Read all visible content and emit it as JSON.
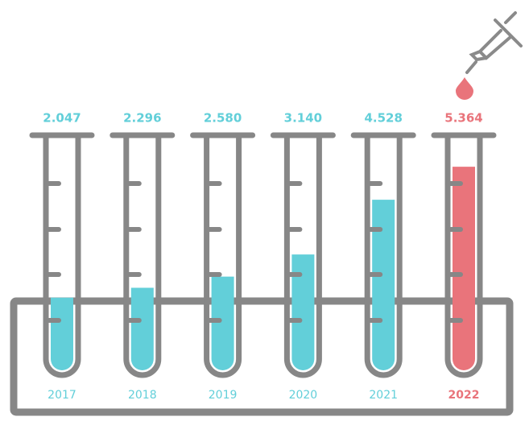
{
  "chart_data": {
    "type": "bar",
    "categories": [
      "2017",
      "2018",
      "2019",
      "2020",
      "2021",
      "2022"
    ],
    "values": [
      2.047,
      2.296,
      2.58,
      3.14,
      4.528,
      5.364
    ],
    "value_labels": [
      "2.047",
      "2.296",
      "2.580",
      "3.140",
      "4.528",
      "5.364"
    ],
    "colors": [
      "#62cfd9",
      "#62cfd9",
      "#62cfd9",
      "#62cfd9",
      "#62cfd9",
      "#e9747b"
    ]
  }
}
